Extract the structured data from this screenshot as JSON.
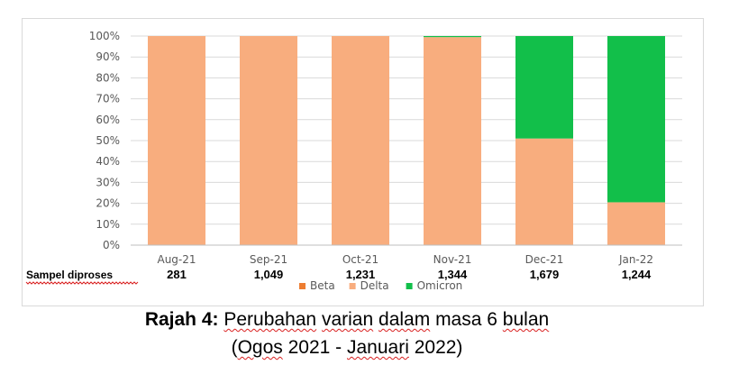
{
  "chart_data": {
    "type": "bar",
    "stacked": true,
    "percent": true,
    "categories": [
      "Aug-21",
      "Sep-21",
      "Oct-21",
      "Nov-21",
      "Dec-21",
      "Jan-22"
    ],
    "series": [
      {
        "name": "Beta",
        "color": "#ed7d31",
        "values": [
          0,
          0,
          0,
          0,
          0,
          0
        ]
      },
      {
        "name": "Delta",
        "color": "#f8ad7e",
        "values": [
          100,
          100,
          100,
          99.5,
          51,
          20.5
        ]
      },
      {
        "name": "Omicron",
        "color": "#12bf4a",
        "values": [
          0,
          0,
          0,
          0.5,
          49,
          79.5
        ]
      }
    ],
    "ylim": [
      0,
      100
    ],
    "yticks": [
      "0%",
      "10%",
      "20%",
      "30%",
      "40%",
      "50%",
      "60%",
      "70%",
      "80%",
      "90%",
      "100%"
    ],
    "legend_position": "bottom",
    "samples_label": "Sampel diproses",
    "samples": [
      "281",
      "1,049",
      "1,231",
      "1,344",
      "1,679",
      "1,244"
    ]
  },
  "caption": {
    "prefix": "Rajah 4:",
    "line1_words": [
      "Perubahan",
      "varian",
      "dalam",
      "masa",
      "6",
      "bulan"
    ],
    "line2": {
      "open": "(",
      "ogos": "Ogos",
      "mid": " 2021 - ",
      "januari": "Januari",
      "close": " 2022)"
    }
  }
}
